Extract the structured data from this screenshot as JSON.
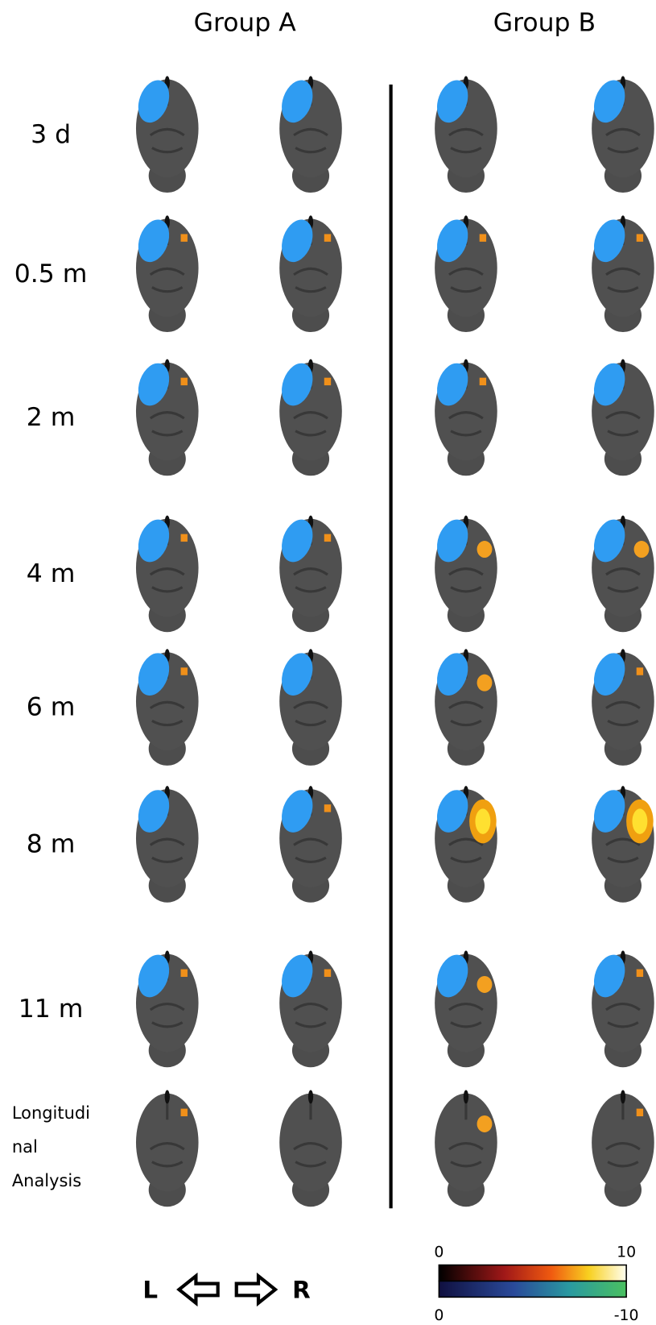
{
  "header": {
    "columns": [
      "Group A",
      "Group B"
    ]
  },
  "rows": [
    "3 d",
    "0.5 m",
    "2 m",
    "4 m",
    "6 m",
    "8 m",
    "11 m"
  ],
  "last_row": [
    "Longitudi",
    "nal",
    "Analysis"
  ],
  "colorbar": {
    "positive": {
      "min": "0",
      "max": "10"
    },
    "negative": {
      "min": "0",
      "max": "-10"
    }
  },
  "orientation": {
    "left": "L",
    "right": "R"
  }
}
